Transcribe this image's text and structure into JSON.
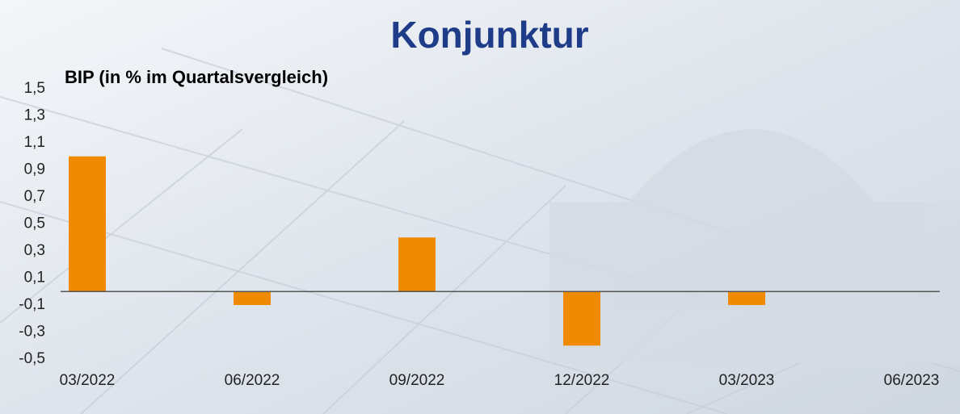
{
  "chart_data": {
    "type": "bar",
    "title": "Konjunktur",
    "subtitle": "BIP (in % im Quartalsvergleich)",
    "categories": [
      "03/2022",
      "06/2022",
      "09/2022",
      "12/2022",
      "03/2023",
      "06/2023"
    ],
    "values": [
      1.0,
      -0.1,
      0.4,
      -0.4,
      -0.1,
      null
    ],
    "color": "#f08a00",
    "ylim": [
      -0.5,
      1.5
    ],
    "yticks": [
      {
        "value": -0.5,
        "label": "-0,5"
      },
      {
        "value": -0.3,
        "label": "-0,3"
      },
      {
        "value": -0.1,
        "label": "-0,1"
      },
      {
        "value": 0.1,
        "label": "0,1"
      },
      {
        "value": 0.3,
        "label": "0,3"
      },
      {
        "value": 0.5,
        "label": "0,5"
      },
      {
        "value": 0.7,
        "label": "0,7"
      },
      {
        "value": 0.9,
        "label": "0,9"
      },
      {
        "value": 1.1,
        "label": "1,1"
      },
      {
        "value": 1.3,
        "label": "1,3"
      },
      {
        "value": 1.5,
        "label": "1,5"
      }
    ],
    "grid": false
  }
}
